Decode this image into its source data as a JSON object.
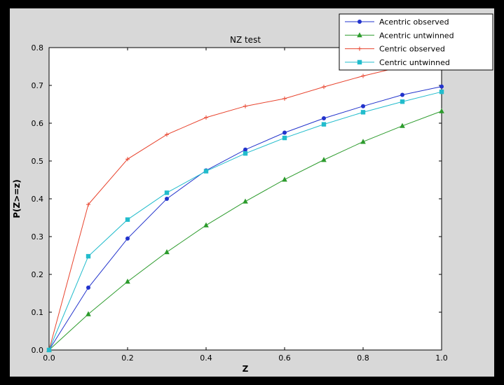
{
  "window": {
    "background": "#000000",
    "figure_background": "#d8d8d8",
    "plot_background": "#ffffff"
  },
  "chart_data": {
    "type": "line",
    "title": "NZ test",
    "xlabel": "Z",
    "ylabel": "P(Z>=z)",
    "xlim": [
      0.0,
      1.0
    ],
    "ylim": [
      0.0,
      0.8
    ],
    "grid": false,
    "legend_position": "upper right",
    "x_tick_labels": [
      "0.0",
      "0.2",
      "0.4",
      "0.6",
      "0.8",
      "1.0"
    ],
    "y_tick_labels": [
      "0.0",
      "0.1",
      "0.2",
      "0.3",
      "0.4",
      "0.5",
      "0.6",
      "0.7",
      "0.8"
    ],
    "x": [
      0.0,
      0.1,
      0.2,
      0.3,
      0.4,
      0.5,
      0.6,
      0.7,
      0.8,
      0.9,
      1.0
    ],
    "series": [
      {
        "name": "Acentric observed",
        "color": "#2233cc",
        "marker": "circle",
        "values": [
          0.0,
          0.165,
          0.295,
          0.4,
          0.475,
          0.53,
          0.575,
          0.613,
          0.645,
          0.675,
          0.697
        ]
      },
      {
        "name": "Acentric untwinned",
        "color": "#2c9b2c",
        "marker": "triangle",
        "values": [
          0.0,
          0.095,
          0.181,
          0.259,
          0.33,
          0.393,
          0.451,
          0.503,
          0.551,
          0.593,
          0.632
        ]
      },
      {
        "name": "Centric observed",
        "color": "#e8432d",
        "marker": "plus",
        "values": [
          0.0,
          0.385,
          0.505,
          0.57,
          0.615,
          0.645,
          0.665,
          0.696,
          0.725,
          0.75,
          0.765
        ]
      },
      {
        "name": "Centric untwinned",
        "color": "#22bccc",
        "marker": "square",
        "values": [
          0.0,
          0.248,
          0.345,
          0.416,
          0.473,
          0.52,
          0.561,
          0.597,
          0.629,
          0.657,
          0.683
        ]
      }
    ]
  }
}
